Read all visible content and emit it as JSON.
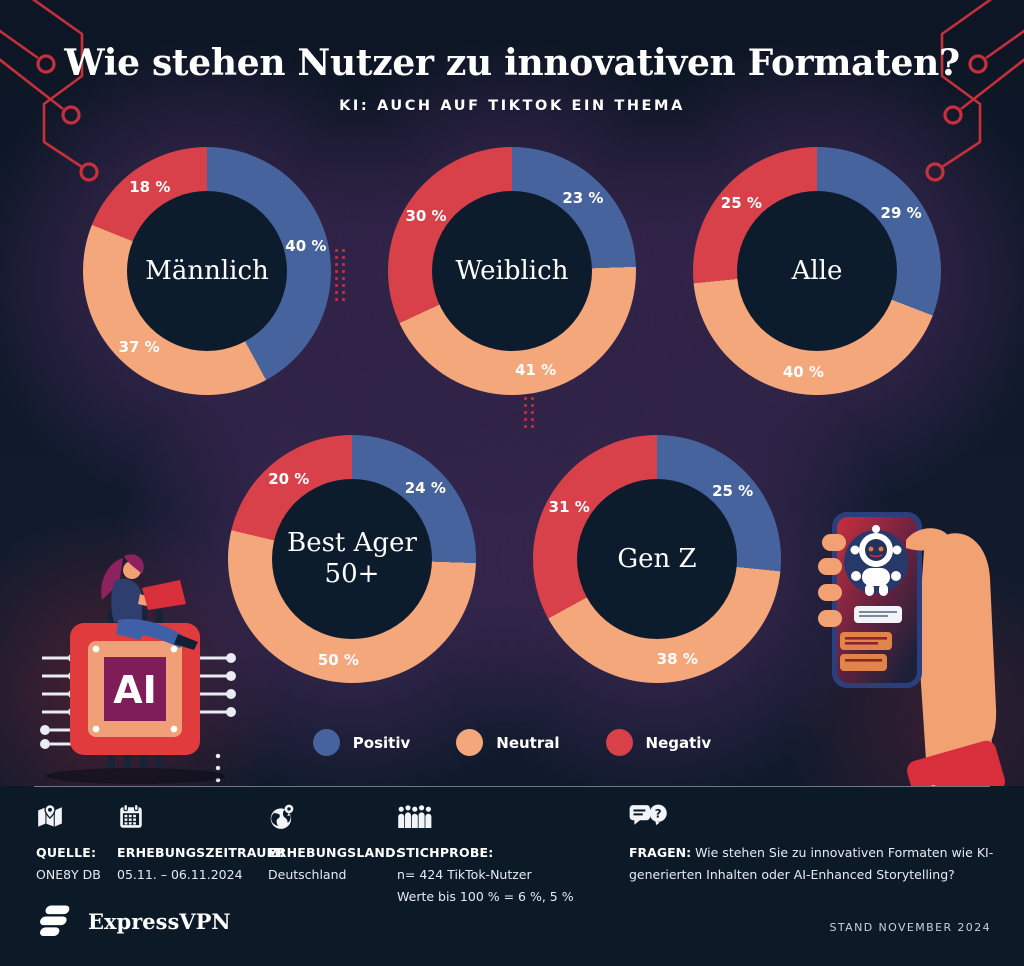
{
  "header": {
    "title": "Wie stehen Nutzer zu innovativen Formaten?",
    "subtitle": "KI: AUCH AUF TIKTOK EIN THEMA"
  },
  "chart_data": {
    "type": "pie",
    "variant": "donut",
    "unit": "%",
    "start_angle_deg": 0,
    "direction": "clockwise",
    "legend_position": "bottom",
    "series_names": [
      "Positiv",
      "Neutral",
      "Negativ"
    ],
    "series_colors": [
      "#47639E",
      "#F4A77B",
      "#D8404A"
    ],
    "charts": [
      {
        "label": "Männlich",
        "values": [
          40,
          37,
          18
        ]
      },
      {
        "label": "Weiblich",
        "values": [
          23,
          41,
          30
        ]
      },
      {
        "label": "Alle",
        "values": [
          29,
          40,
          25
        ]
      },
      {
        "label": "Best Ager",
        "sublabel": "50+",
        "values": [
          24,
          50,
          20
        ]
      },
      {
        "label": "Gen Z",
        "values": [
          25,
          38,
          31
        ]
      }
    ]
  },
  "footer": {
    "items": [
      {
        "icon": "map-icon",
        "label": "QUELLE:",
        "lines": [
          "ONE8Y DB"
        ]
      },
      {
        "icon": "calendar-icon",
        "label": "ERHEBUNGSZEITRAUM:",
        "lines": [
          "05.11. – 06.11.2024"
        ]
      },
      {
        "icon": "globe-icon",
        "label": "ERHEBUNGSLAND:",
        "lines": [
          "Deutschland"
        ]
      },
      {
        "icon": "people-icon",
        "label": "STICHPROBE:",
        "lines": [
          "n= 424 TikTok-Nutzer",
          "Werte bis 100 % = 6 %, 5 %"
        ]
      },
      {
        "icon": "chat-question-icon",
        "label": "FRAGEN:",
        "inline_text": "Wie stehen Sie zu innovativen Formaten wie KI-generierten Inhalten oder AI-Enhanced Storytelling?"
      }
    ]
  },
  "illustrations": {
    "left": "ai-chip-with-person",
    "right": "hand-holding-phone-chatbot",
    "ai_chip_text": "AI"
  },
  "bottombar": {
    "brand": "ExpressVPN",
    "stand": "STAND NOVEMBER 2024"
  }
}
